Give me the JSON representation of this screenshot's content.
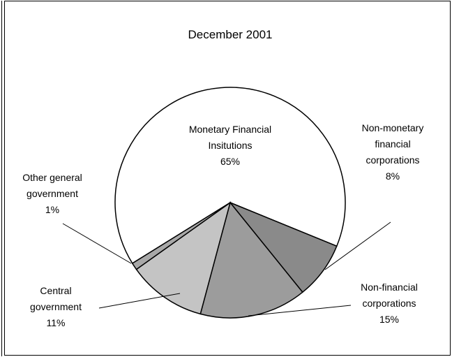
{
  "chart_data": {
    "type": "pie",
    "title": "December 2001",
    "categories": [
      "Monetary Financial Insitutions",
      "Non-monetary financial corporations",
      "Non-financial corporations",
      "Central government",
      "Other general government"
    ],
    "values": [
      65,
      8,
      15,
      11,
      1
    ],
    "value_labels": [
      "65%",
      "8%",
      "15%",
      "11%",
      "1%"
    ],
    "colors": [
      "#ffffff",
      "#8a8a8a",
      "#9c9c9c",
      "#c4c4c4",
      "#a8a8a8"
    ]
  }
}
